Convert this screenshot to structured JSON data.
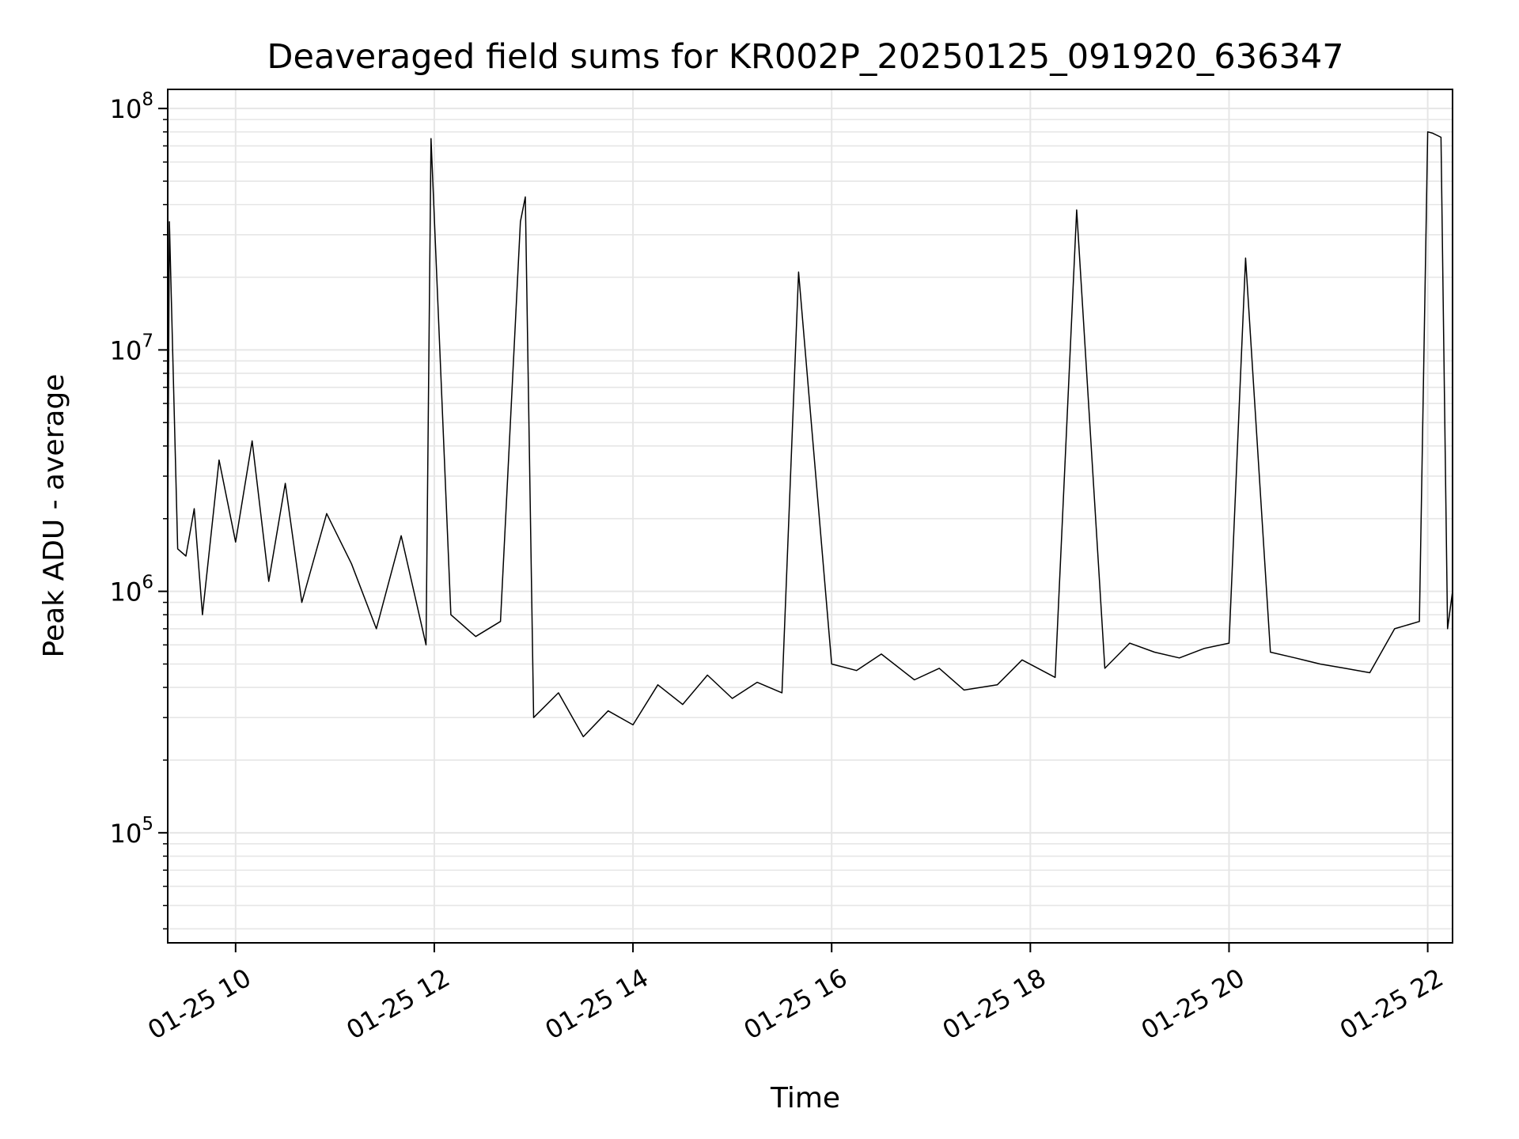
{
  "chart_data": {
    "type": "line",
    "title": "Deaveraged field sums for KR002P_20250125_091920_636347",
    "xlabel": "Time",
    "ylabel": "Peak ADU - average",
    "y_scale": "log",
    "ylim": [
      35000,
      120000000
    ],
    "xlim": [
      "2025-01-25 09:19",
      "2025-01-25 22:15"
    ],
    "grid": true,
    "line_color": "#000000",
    "grid_color": "#e6e6e6",
    "x_ticks": [
      {
        "value": "2025-01-25 10:00",
        "label": "01-25 10"
      },
      {
        "value": "2025-01-25 12:00",
        "label": "01-25 12"
      },
      {
        "value": "2025-01-25 14:00",
        "label": "01-25 14"
      },
      {
        "value": "2025-01-25 16:00",
        "label": "01-25 16"
      },
      {
        "value": "2025-01-25 18:00",
        "label": "01-25 18"
      },
      {
        "value": "2025-01-25 20:00",
        "label": "01-25 20"
      },
      {
        "value": "2025-01-25 22:00",
        "label": "01-25 22"
      }
    ],
    "y_ticks": [
      {
        "value": 100000,
        "base": "10",
        "exp": "5"
      },
      {
        "value": 1000000,
        "base": "10",
        "exp": "6"
      },
      {
        "value": 10000000,
        "base": "10",
        "exp": "7"
      },
      {
        "value": 100000000,
        "base": "10",
        "exp": "8"
      }
    ],
    "series": [
      {
        "x": [
          "2025-01-25 09:19",
          "2025-01-25 09:20",
          "2025-01-25 09:25",
          "2025-01-25 09:30",
          "2025-01-25 09:35",
          "2025-01-25 09:40",
          "2025-01-25 09:50",
          "2025-01-25 10:00",
          "2025-01-25 10:10",
          "2025-01-25 10:20",
          "2025-01-25 10:30",
          "2025-01-25 10:40",
          "2025-01-25 10:55",
          "2025-01-25 11:10",
          "2025-01-25 11:25",
          "2025-01-25 11:40",
          "2025-01-25 11:55",
          "2025-01-25 11:58",
          "2025-01-25 12:10",
          "2025-01-25 12:25",
          "2025-01-25 12:40",
          "2025-01-25 12:52",
          "2025-01-25 12:55",
          "2025-01-25 13:00",
          "2025-01-25 13:15",
          "2025-01-25 13:30",
          "2025-01-25 13:45",
          "2025-01-25 14:00",
          "2025-01-25 14:15",
          "2025-01-25 14:30",
          "2025-01-25 14:45",
          "2025-01-25 15:00",
          "2025-01-25 15:15",
          "2025-01-25 15:30",
          "2025-01-25 15:40",
          "2025-01-25 16:00",
          "2025-01-25 16:15",
          "2025-01-25 16:30",
          "2025-01-25 16:50",
          "2025-01-25 17:05",
          "2025-01-25 17:20",
          "2025-01-25 17:40",
          "2025-01-25 17:55",
          "2025-01-25 18:15",
          "2025-01-25 18:28",
          "2025-01-25 18:45",
          "2025-01-25 19:00",
          "2025-01-25 19:15",
          "2025-01-25 19:30",
          "2025-01-25 19:45",
          "2025-01-25 20:00",
          "2025-01-25 20:10",
          "2025-01-25 20:25",
          "2025-01-25 20:40",
          "2025-01-25 20:55",
          "2025-01-25 21:10",
          "2025-01-25 21:25",
          "2025-01-25 21:40",
          "2025-01-25 21:55",
          "2025-01-25 22:00",
          "2025-01-25 22:03",
          "2025-01-25 22:08",
          "2025-01-25 22:12",
          "2025-01-25 22:15"
        ],
        "y": [
          1700000,
          34000000,
          1500000,
          1400000,
          2200000,
          800000,
          3500000,
          1600000,
          4200000,
          1100000,
          2800000,
          900000,
          2100000,
          1300000,
          700000,
          1700000,
          600000,
          75000000,
          800000,
          650000,
          750000,
          34000000,
          43000000,
          300000,
          380000,
          250000,
          320000,
          280000,
          410000,
          340000,
          450000,
          360000,
          420000,
          380000,
          21000000,
          500000,
          470000,
          550000,
          430000,
          480000,
          390000,
          410000,
          520000,
          440000,
          38000000,
          480000,
          610000,
          560000,
          530000,
          580000,
          610000,
          24000000,
          560000,
          530000,
          500000,
          480000,
          460000,
          700000,
          750000,
          80000000,
          79000000,
          76000000,
          700000,
          1000000
        ]
      }
    ]
  }
}
